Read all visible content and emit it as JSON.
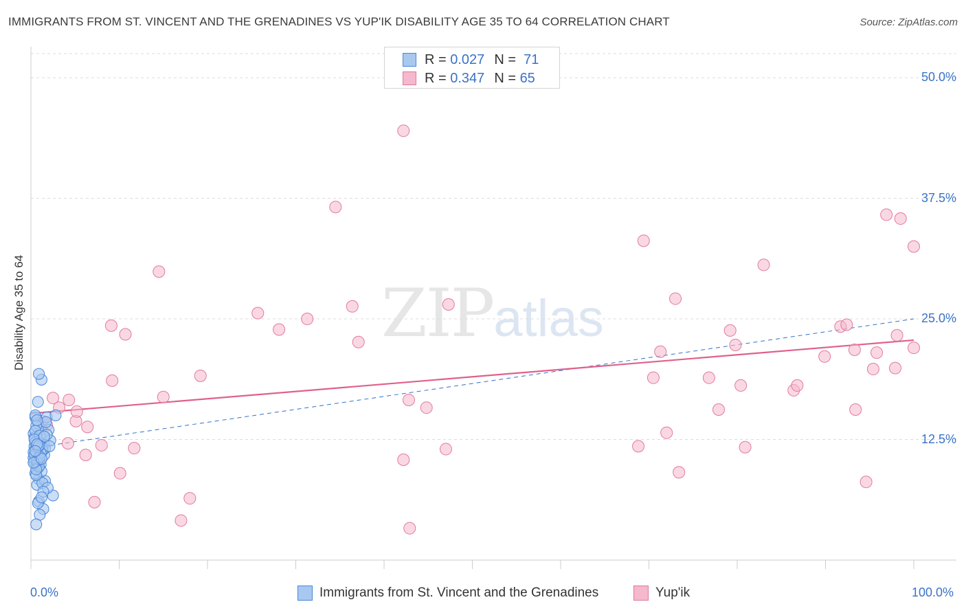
{
  "header": {
    "title": "IMMIGRANTS FROM ST. VINCENT AND THE GRENADINES VS YUP'IK DISABILITY AGE 35 TO 64 CORRELATION CHART",
    "source": "Source: ZipAtlas.com"
  },
  "watermark": {
    "zip": "ZIP",
    "atlas": "atlas"
  },
  "legend": {
    "r_label": "R =",
    "n_label": "N =",
    "rows": [
      {
        "r": "0.027",
        "n": "71",
        "color": "#a8c8f0"
      },
      {
        "r": "0.347",
        "n": "65",
        "color": "#f5b8cc"
      }
    ]
  },
  "colors": {
    "blue_fill": "#a8c8f0",
    "blue_stroke": "#4a86d8",
    "blue_line": "#2f6fd0",
    "pink_fill": "#f5b8cc",
    "pink_stroke": "#e07a9c",
    "pink_line": "#e0608a",
    "tick_text": "#3a72c8",
    "grid": "#dcdcdc"
  },
  "chart_data": {
    "type": "scatter",
    "title": "IMMIGRANTS FROM ST. VINCENT AND THE GRENADINES VS YUP'IK DISABILITY AGE 35 TO 64 CORRELATION CHART",
    "xlabel": "",
    "ylabel": "Disability Age 35 to 64",
    "xlim": [
      0,
      100
    ],
    "ylim": [
      0,
      52.5
    ],
    "x_tick_labels": [
      "0.0%",
      "100.0%"
    ],
    "y_ticks": [
      12.5,
      25.0,
      37.5,
      50.0
    ],
    "y_tick_labels": [
      "12.5%",
      "25.0%",
      "37.5%",
      "50.0%"
    ],
    "grid": true,
    "series": [
      {
        "name": "Immigrants from St. Vincent and the Grenadines",
        "color": "#a8c8f0",
        "points": [
          [
            0.4,
            10.2
          ],
          [
            0.5,
            11.5
          ],
          [
            0.6,
            12.3
          ],
          [
            0.3,
            13.1
          ],
          [
            0.8,
            9.5
          ],
          [
            0.5,
            14.8
          ],
          [
            0.7,
            10.8
          ],
          [
            1.0,
            11.9
          ],
          [
            1.2,
            13.6
          ],
          [
            0.9,
            8.4
          ],
          [
            0.4,
            12.7
          ],
          [
            0.6,
            11.0
          ],
          [
            1.5,
            12.0
          ],
          [
            0.8,
            14.2
          ],
          [
            1.1,
            9.9
          ],
          [
            0.3,
            10.6
          ],
          [
            1.8,
            14.8
          ],
          [
            0.5,
            15.0
          ],
          [
            2.0,
            13.5
          ],
          [
            1.3,
            11.3
          ],
          [
            0.7,
            7.8
          ],
          [
            1.6,
            8.2
          ],
          [
            0.9,
            6.1
          ],
          [
            1.4,
            5.3
          ],
          [
            2.5,
            6.7
          ],
          [
            1.0,
            4.7
          ],
          [
            0.6,
            3.7
          ],
          [
            1.2,
            18.7
          ],
          [
            0.9,
            19.3
          ],
          [
            0.8,
            16.4
          ],
          [
            1.7,
            14.3
          ],
          [
            2.8,
            15.0
          ],
          [
            1.1,
            12.6
          ],
          [
            0.5,
            9.0
          ],
          [
            0.7,
            10.0
          ],
          [
            1.3,
            8.0
          ],
          [
            1.9,
            7.5
          ],
          [
            0.4,
            11.8
          ],
          [
            0.6,
            13.9
          ],
          [
            0.8,
            12.1
          ],
          [
            1.5,
            10.9
          ],
          [
            0.3,
            11.2
          ],
          [
            0.9,
            10.4
          ],
          [
            1.2,
            9.2
          ],
          [
            1.6,
            11.6
          ],
          [
            2.2,
            12.4
          ],
          [
            0.5,
            13.4
          ],
          [
            0.7,
            14.5
          ],
          [
            0.4,
            10.9
          ],
          [
            1.0,
            12.9
          ],
          [
            1.4,
            7.1
          ],
          [
            0.8,
            5.9
          ],
          [
            1.2,
            6.5
          ],
          [
            0.6,
            8.8
          ],
          [
            0.9,
            9.7
          ],
          [
            1.3,
            11.4
          ],
          [
            0.5,
            12.2
          ],
          [
            1.8,
            13.0
          ],
          [
            0.7,
            10.3
          ],
          [
            1.1,
            11.1
          ],
          [
            0.4,
            12.5
          ],
          [
            0.6,
            9.4
          ],
          [
            1.0,
            10.7
          ],
          [
            0.8,
            11.7
          ],
          [
            1.5,
            12.8
          ],
          [
            0.3,
            10.1
          ],
          [
            0.9,
            11.9
          ],
          [
            1.2,
            10.5
          ],
          [
            0.7,
            12.0
          ],
          [
            2.1,
            11.8
          ],
          [
            0.5,
            11.3
          ]
        ]
      },
      {
        "name": "Yup'ik",
        "color": "#f5b8cc",
        "points": [
          [
            1.3,
            14.4
          ],
          [
            1.8,
            14.0
          ],
          [
            2.5,
            16.8
          ],
          [
            3.2,
            15.8
          ],
          [
            4.2,
            12.1
          ],
          [
            4.3,
            16.6
          ],
          [
            5.1,
            14.4
          ],
          [
            5.2,
            15.4
          ],
          [
            6.2,
            10.9
          ],
          [
            6.4,
            13.8
          ],
          [
            7.2,
            6.0
          ],
          [
            8.0,
            11.9
          ],
          [
            9.1,
            24.3
          ],
          [
            9.2,
            18.6
          ],
          [
            10.1,
            9.0
          ],
          [
            10.7,
            23.4
          ],
          [
            11.7,
            11.6
          ],
          [
            14.5,
            29.9
          ],
          [
            15.0,
            16.9
          ],
          [
            17.0,
            4.1
          ],
          [
            18.0,
            6.4
          ],
          [
            19.2,
            19.1
          ],
          [
            25.7,
            25.6
          ],
          [
            28.1,
            23.9
          ],
          [
            31.3,
            25.0
          ],
          [
            34.5,
            36.6
          ],
          [
            36.4,
            26.3
          ],
          [
            37.1,
            22.6
          ],
          [
            42.2,
            44.5
          ],
          [
            42.2,
            10.4
          ],
          [
            42.8,
            16.6
          ],
          [
            42.9,
            3.3
          ],
          [
            44.8,
            15.8
          ],
          [
            47.0,
            11.5
          ],
          [
            47.3,
            26.5
          ],
          [
            68.8,
            11.8
          ],
          [
            69.4,
            33.1
          ],
          [
            70.5,
            18.9
          ],
          [
            71.3,
            21.6
          ],
          [
            72.0,
            13.2
          ],
          [
            73.0,
            27.1
          ],
          [
            73.4,
            9.1
          ],
          [
            76.8,
            18.9
          ],
          [
            77.9,
            15.6
          ],
          [
            79.2,
            23.8
          ],
          [
            79.8,
            22.3
          ],
          [
            80.4,
            18.1
          ],
          [
            80.9,
            11.7
          ],
          [
            83.0,
            30.6
          ],
          [
            86.4,
            17.6
          ],
          [
            86.8,
            18.1
          ],
          [
            89.9,
            21.1
          ],
          [
            91.7,
            24.2
          ],
          [
            92.4,
            24.4
          ],
          [
            93.3,
            21.8
          ],
          [
            93.4,
            15.6
          ],
          [
            94.6,
            8.1
          ],
          [
            95.4,
            19.8
          ],
          [
            95.8,
            21.5
          ],
          [
            96.9,
            35.8
          ],
          [
            97.9,
            19.9
          ],
          [
            98.1,
            23.3
          ],
          [
            100.0,
            22.0
          ],
          [
            100.0,
            32.5
          ],
          [
            98.5,
            35.4
          ]
        ]
      }
    ],
    "trendlines": [
      {
        "series": "Immigrants from St. Vincent and the Grenadines",
        "style": "solid",
        "from": [
          0.0,
          11.1
        ],
        "to": [
          2.2,
          11.9
        ]
      },
      {
        "series": "Immigrants from St. Vincent and the Grenadines",
        "style": "dashed",
        "from": [
          2.2,
          11.9
        ],
        "to": [
          100.0,
          25.0
        ]
      },
      {
        "series": "Yup'ik",
        "style": "solid",
        "from": [
          0.0,
          15.2
        ],
        "to": [
          100.0,
          22.8
        ]
      }
    ]
  },
  "bottom_legend": [
    {
      "label": "Immigrants from St. Vincent and the Grenadines",
      "color": "#a8c8f0"
    },
    {
      "label": "Yup'ik",
      "color": "#f5b8cc"
    }
  ]
}
